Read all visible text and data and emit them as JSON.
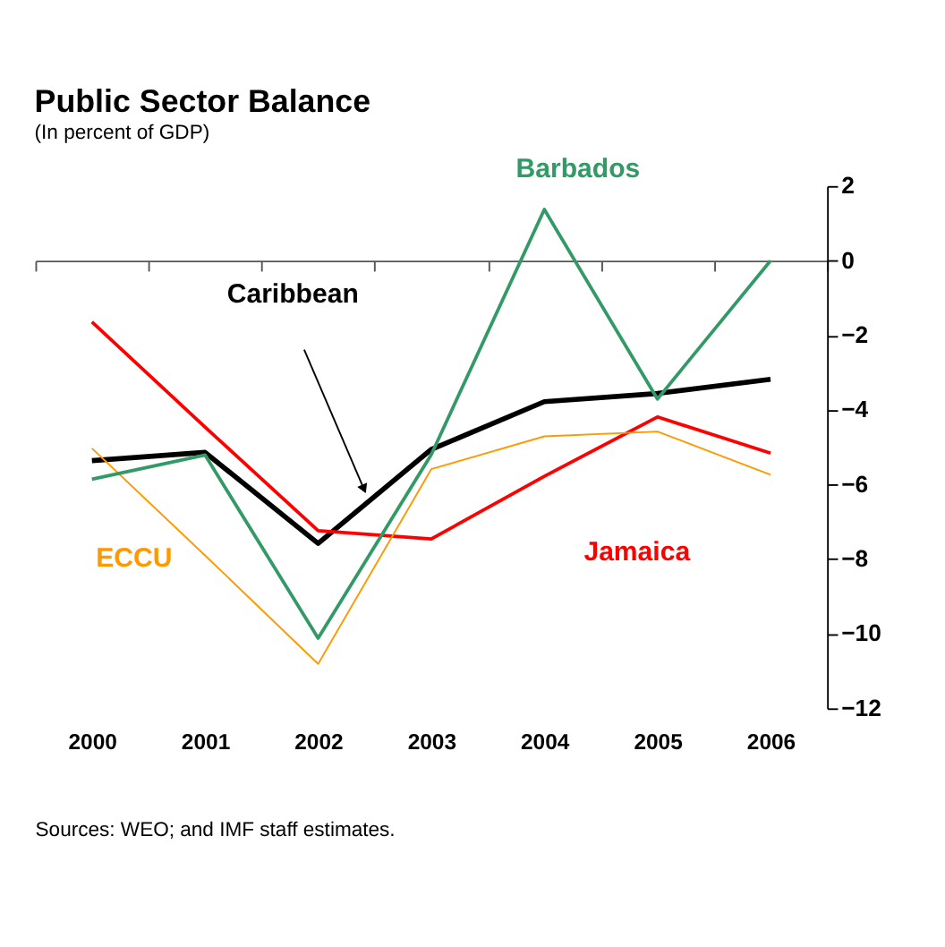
{
  "chart_data": {
    "type": "line",
    "title": "Public Sector Balance",
    "subtitle": "(In percent of GDP)",
    "categories": [
      "2000",
      "2001",
      "2002",
      "2003",
      "2004",
      "2005",
      "2006"
    ],
    "series": [
      {
        "name": "Caribbean",
        "color": "#000000",
        "values": [
          -5.36,
          -5.14,
          -7.58,
          -5.06,
          -3.78,
          -3.56,
          -3.18
        ]
      },
      {
        "name": "Jamaica",
        "color": "#ff0000",
        "values": [
          -1.64,
          -4.46,
          -7.24,
          -7.46,
          -5.78,
          -4.19,
          -5.16
        ]
      },
      {
        "name": "ECCU",
        "color": "#ff9900",
        "values": [
          -5.03,
          -7.9,
          -10.81,
          -5.59,
          -4.71,
          -4.58,
          -5.74
        ]
      },
      {
        "name": "Barbados",
        "color": "#339966",
        "values": [
          -5.86,
          -5.21,
          -10.12,
          -5.2,
          1.37,
          -3.71,
          0.0
        ]
      }
    ],
    "ylim": [
      -12,
      2
    ],
    "yticks": [
      2,
      0,
      -2,
      -4,
      -6,
      -8,
      -10,
      -12
    ],
    "marker": "none",
    "line_style": "solid",
    "annotations": [
      "Sources: WEO; and IMF staff estimates."
    ]
  }
}
